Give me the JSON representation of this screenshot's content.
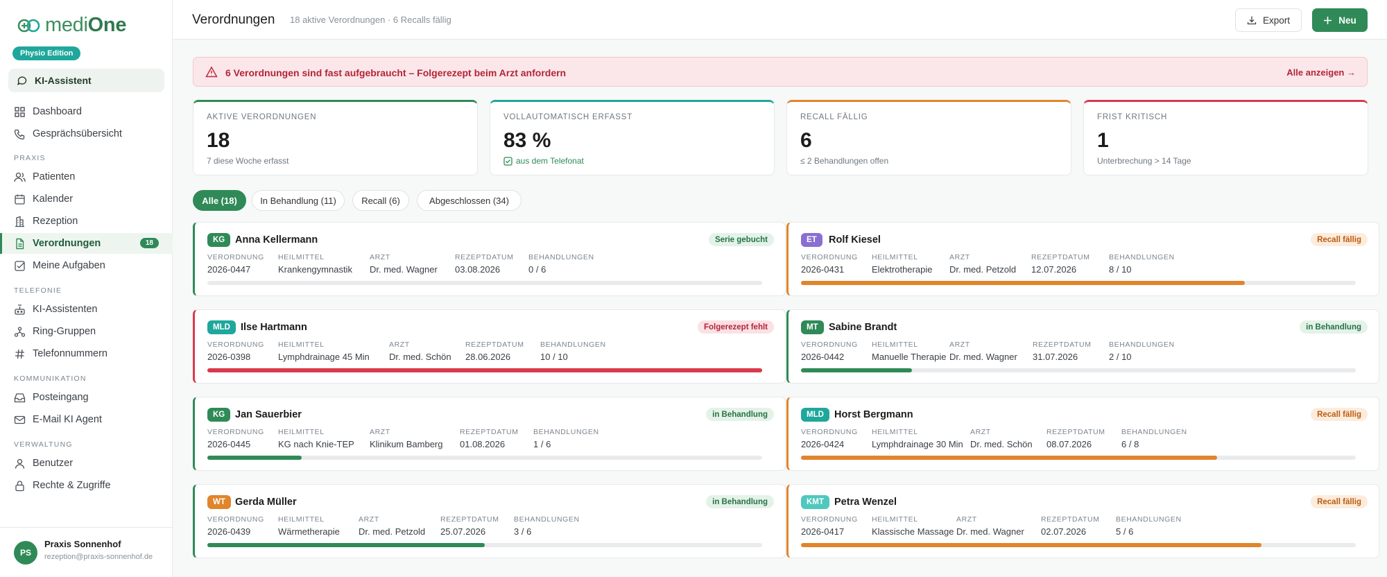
{
  "sidebar": {
    "logo_pre": "medi",
    "logo_post": "One",
    "edition": "Physio Edition",
    "ki_button": "KI-Assistent",
    "items": [
      {
        "label": "Dashboard",
        "icon": "grid-icon"
      },
      {
        "label": "Gesprächsübersicht",
        "icon": "phone-icon"
      },
      {
        "label": "Patienten",
        "icon": "users-icon"
      },
      {
        "label": "Kalender",
        "icon": "calendar-icon"
      },
      {
        "label": "Rezeption",
        "icon": "building-icon"
      },
      {
        "label": "Verordnungen",
        "icon": "document-icon",
        "badge": "18"
      },
      {
        "label": "Meine Aufgaben",
        "icon": "checkbox-icon"
      },
      {
        "label": "KI-Assistenten",
        "icon": "bot-icon"
      },
      {
        "label": "Ring-Gruppen",
        "icon": "network-icon"
      },
      {
        "label": "Telefonnummern",
        "icon": "hash-icon"
      },
      {
        "label": "Posteingang",
        "icon": "inbox-icon"
      },
      {
        "label": "E-Mail KI Agent",
        "icon": "mail-icon"
      },
      {
        "label": "Benutzer",
        "icon": "user-icon"
      },
      {
        "label": "Rechte & Zugriffe",
        "icon": "lock-icon"
      }
    ],
    "sections": [
      "PRAXIS",
      "TELEFONIE",
      "KOMMUNIKATION",
      "VERWALTUNG"
    ],
    "user": {
      "initials": "PS",
      "name": "Praxis Sonnenhof",
      "email": "rezeption@praxis-sonnenhof.de"
    }
  },
  "header": {
    "title": "Verordnungen",
    "subtitle": "18 aktive Verordnungen · 6 Recalls fällig",
    "export_label": "Export",
    "new_label": "Neu"
  },
  "alert": {
    "text": "6 Verordnungen sind fast aufgebraucht – Folgerezept beim Arzt anfordern",
    "link": "Alle anzeigen →"
  },
  "kpis": [
    {
      "label": "AKTIVE VERORDNUNGEN",
      "value": "18",
      "sub": "7 diese Woche erfasst",
      "color": "#2f8a57"
    },
    {
      "label": "VOLLAUTOMATISCH ERFASST",
      "value": "83 %",
      "sub": "aus dem Telefonat",
      "color": "#1fa79c"
    },
    {
      "label": "RECALL FÄLLIG",
      "value": "6",
      "sub": "≤ 2 Behandlungen offen",
      "color": "#e0852b"
    },
    {
      "label": "FRIST KRITISCH",
      "value": "1",
      "sub": "Unterbrechung > 14 Tage",
      "color": "#d9394d"
    }
  ],
  "tabs": [
    "Alle (18)",
    "In Behandlung (11)",
    "Recall (6)",
    "Abgeschlossen (34)"
  ],
  "field_labels": {
    "verordnung": "VERORDNUNG",
    "heilmittel": "HEILMITTEL",
    "arzt": "ARZT",
    "datum": "REZEPTDATUM",
    "behandlungen": "BEHANDLUNGEN"
  },
  "cards": [
    {
      "tag": "KG",
      "name": "Anna Kellermann",
      "status": "Serie gebucht",
      "verordnung": "2026-0447",
      "heilmittel": "Krankengymnastik",
      "arzt": "Dr. med. Wagner",
      "datum": "03.08.2026",
      "behandlungen": "0 / 6",
      "progress": 0
    },
    {
      "tag": "ET",
      "name": "Rolf Kiesel",
      "status": "Recall fällig",
      "verordnung": "2026-0431",
      "heilmittel": "Elektrotherapie",
      "arzt": "Dr. med. Petzold",
      "datum": "12.07.2026",
      "behandlungen": "8 / 10",
      "progress": 0.8
    },
    {
      "tag": "MLD",
      "name": "Ilse Hartmann",
      "status": "Folgerezept fehlt",
      "verordnung": "2026-0398",
      "heilmittel": "Lymphdrainage 45 Min",
      "arzt": "Dr. med. Schön",
      "datum": "28.06.2026",
      "behandlungen": "10 / 10",
      "progress": 1
    },
    {
      "tag": "MT",
      "name": "Sabine Brandt",
      "status": "in Behandlung",
      "verordnung": "2026-0442",
      "heilmittel": "Manuelle Therapie",
      "arzt": "Dr. med. Wagner",
      "datum": "31.07.2026",
      "behandlungen": "2 / 10",
      "progress": 0.2
    },
    {
      "tag": "KG",
      "name": "Jan Sauerbier",
      "status": "in Behandlung",
      "verordnung": "2026-0445",
      "heilmittel": "KG nach Knie-TEP",
      "arzt": "Klinikum Bamberg",
      "datum": "01.08.2026",
      "behandlungen": "1 / 6",
      "progress": 0.17
    },
    {
      "tag": "MLD",
      "name": "Horst Bergmann",
      "status": "Recall fällig",
      "verordnung": "2026-0424",
      "heilmittel": "Lymphdrainage 30 Min",
      "arzt": "Dr. med. Schön",
      "datum": "08.07.2026",
      "behandlungen": "6 / 8",
      "progress": 0.75
    },
    {
      "tag": "WT",
      "name": "Gerda Müller",
      "status": "in Behandlung",
      "verordnung": "2026-0439",
      "heilmittel": "Wärmetherapie",
      "arzt": "Dr. med. Petzold",
      "datum": "25.07.2026",
      "behandlungen": "3 / 6",
      "progress": 0.5
    },
    {
      "tag": "KMT",
      "name": "Petra Wenzel",
      "status": "Recall fällig",
      "verordnung": "2026-0417",
      "heilmittel": "Klassische Massage",
      "arzt": "Dr. med. Wagner",
      "datum": "02.07.2026",
      "behandlungen": "5 / 6",
      "progress": 0.83
    }
  ],
  "colors": {
    "accent": "#2f8a57",
    "orange": "#e0852b",
    "red": "#d9394d",
    "teal": "#1fa79c",
    "purple": "#8a6fd1"
  }
}
